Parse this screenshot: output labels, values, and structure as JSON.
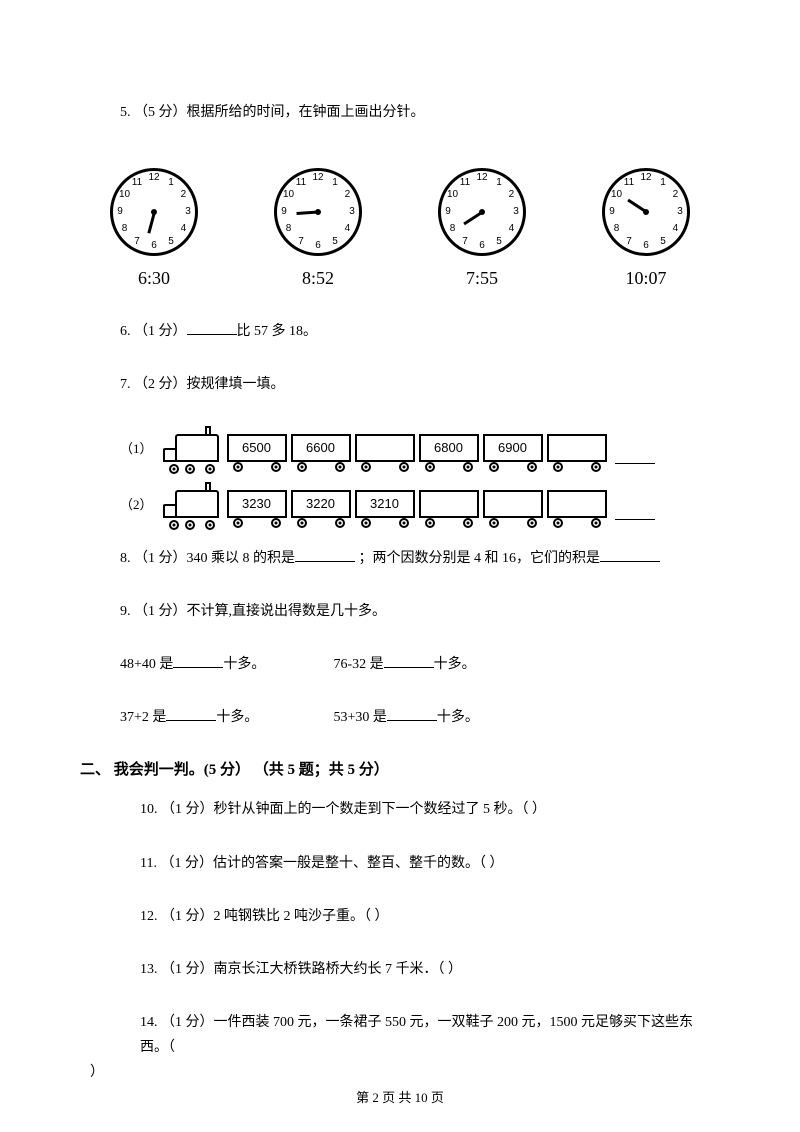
{
  "q5": {
    "label": "5. （5 分）根据所给的时间，在钟面上画出分针。",
    "clocks": [
      {
        "time": "6:30",
        "hour_angle": 195
      },
      {
        "time": "8:52",
        "hour_angle": 266
      },
      {
        "time": "7:55",
        "hour_angle": 237
      },
      {
        "time": "10:07",
        "hour_angle": 303
      }
    ],
    "clock_numbers": [
      "12",
      "1",
      "2",
      "3",
      "4",
      "5",
      "6",
      "7",
      "8",
      "9",
      "10",
      "11"
    ]
  },
  "q6": {
    "label_pre": "6. （1 分）",
    "label_post": "比 57 多 18。"
  },
  "q7": {
    "label": "7. （2 分）按规律填一填。",
    "train1_label": "（1）",
    "train1_values": [
      "6500",
      "6600",
      "",
      "6800",
      "6900",
      ""
    ],
    "train2_label": "（2）",
    "train2_values": [
      "3230",
      "3220",
      "3210",
      "",
      "",
      ""
    ]
  },
  "q8": {
    "text1": "8. （1 分）340 乘以 8 的积是",
    "text2": " ；两个因数分别是 4 和 16，它们的积是"
  },
  "q9": {
    "label": "9. （1 分）不计算,直接说出得数是几十多。",
    "line1a": "48+40 是",
    "line1b": "十多。",
    "line1c": "76-32 是",
    "line1d": "十多。",
    "line2a": "37+2 是",
    "line2b": "十多。",
    "line2c": "53+30 是",
    "line2d": "十多。"
  },
  "section2_title": "二、 我会判一判。(5 分） （共 5 题；共 5 分）",
  "q10": "10.  （1 分）秒针从钟面上的一个数走到下一个数经过了 5 秒。（     ）",
  "q11": "11.  （1 分）估计的答案一般是整十、整百、整千的数。（     ）",
  "q12": "12.  （1 分）2 吨钢铁比 2 吨沙子重。（     ）",
  "q13": "13.  （1 分）南京长江大桥铁路桥大约长 7 千米．（     ）",
  "q14": {
    "pre": "14.     （1 分）一件西装 700 元，一条裙子 550 元，一双鞋子 200 元，1500 元足够买下这些东西。（",
    "post": "）"
  },
  "footer": "第 2 页 共 10 页",
  "colors": {
    "text": "#000000",
    "bg": "#ffffff"
  }
}
